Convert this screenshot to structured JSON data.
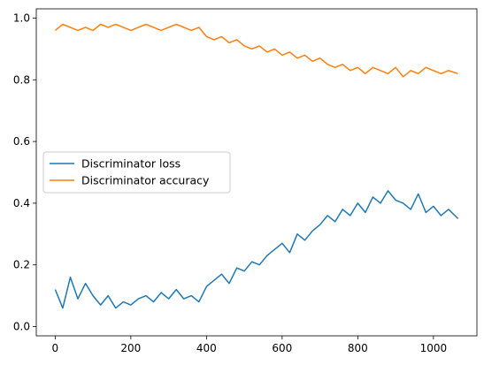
{
  "chart_data": {
    "type": "line",
    "title": "",
    "xlabel": "",
    "ylabel": "",
    "xlim": [
      -50,
      1115
    ],
    "ylim": [
      -0.03,
      1.03
    ],
    "x_ticks": [
      0,
      200,
      400,
      600,
      800,
      1000
    ],
    "y_ticks": [
      0.0,
      0.2,
      0.4,
      0.6,
      0.8,
      1.0
    ],
    "x_tick_labels": [
      "0",
      "200",
      "400",
      "600",
      "800",
      "1000"
    ],
    "y_tick_labels": [
      "0.0",
      "0.2",
      "0.4",
      "0.6",
      "0.8",
      "1.0"
    ],
    "grid": false,
    "legend": "center-left",
    "series": [
      {
        "name": "Discriminator loss",
        "color": "#1f77b4",
        "x": [
          0,
          20,
          40,
          60,
          80,
          100,
          120,
          140,
          160,
          180,
          200,
          220,
          240,
          260,
          280,
          300,
          320,
          340,
          360,
          380,
          400,
          420,
          440,
          460,
          480,
          500,
          520,
          540,
          560,
          580,
          600,
          620,
          640,
          660,
          680,
          700,
          720,
          740,
          760,
          780,
          800,
          820,
          840,
          860,
          880,
          900,
          920,
          940,
          960,
          980,
          1000,
          1020,
          1040,
          1065
        ],
        "values": [
          0.12,
          0.06,
          0.16,
          0.09,
          0.14,
          0.1,
          0.07,
          0.1,
          0.06,
          0.08,
          0.07,
          0.09,
          0.1,
          0.08,
          0.11,
          0.09,
          0.12,
          0.09,
          0.1,
          0.08,
          0.13,
          0.15,
          0.17,
          0.14,
          0.19,
          0.18,
          0.21,
          0.2,
          0.23,
          0.25,
          0.27,
          0.24,
          0.3,
          0.28,
          0.31,
          0.33,
          0.36,
          0.34,
          0.38,
          0.36,
          0.4,
          0.37,
          0.42,
          0.4,
          0.44,
          0.41,
          0.4,
          0.38,
          0.43,
          0.37,
          0.39,
          0.36,
          0.38,
          0.35
        ]
      },
      {
        "name": "Discriminator accuracy",
        "color": "#ff7f0e",
        "x": [
          0,
          20,
          40,
          60,
          80,
          100,
          120,
          140,
          160,
          180,
          200,
          220,
          240,
          260,
          280,
          300,
          320,
          340,
          360,
          380,
          400,
          420,
          440,
          460,
          480,
          500,
          520,
          540,
          560,
          580,
          600,
          620,
          640,
          660,
          680,
          700,
          720,
          740,
          760,
          780,
          800,
          820,
          840,
          860,
          880,
          900,
          920,
          940,
          960,
          980,
          1000,
          1020,
          1040,
          1065
        ],
        "values": [
          0.96,
          0.98,
          0.97,
          0.96,
          0.97,
          0.96,
          0.98,
          0.97,
          0.98,
          0.97,
          0.96,
          0.97,
          0.98,
          0.97,
          0.96,
          0.97,
          0.98,
          0.97,
          0.96,
          0.97,
          0.94,
          0.93,
          0.94,
          0.92,
          0.93,
          0.91,
          0.9,
          0.91,
          0.89,
          0.9,
          0.88,
          0.89,
          0.87,
          0.88,
          0.86,
          0.87,
          0.85,
          0.84,
          0.85,
          0.83,
          0.84,
          0.82,
          0.84,
          0.83,
          0.82,
          0.84,
          0.81,
          0.83,
          0.82,
          0.84,
          0.83,
          0.82,
          0.83,
          0.82
        ]
      }
    ]
  }
}
